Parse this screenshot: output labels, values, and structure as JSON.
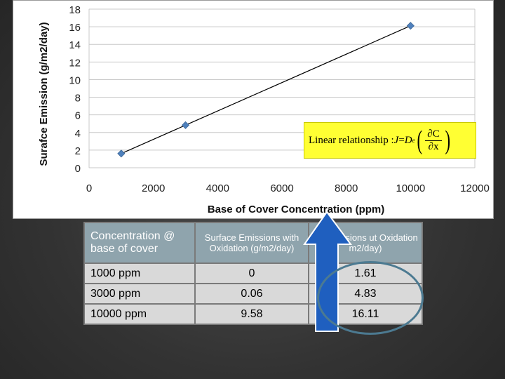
{
  "chart_data": {
    "type": "scatter",
    "title": "",
    "xlabel": "Base of Cover Concentration (ppm)",
    "ylabel": "Surafce Emission (g/m2/day)",
    "xlim": [
      0,
      12000
    ],
    "ylim": [
      0,
      18
    ],
    "x_ticks": [
      0,
      2000,
      4000,
      6000,
      8000,
      10000,
      12000
    ],
    "y_ticks": [
      0,
      2,
      4,
      6,
      8,
      10,
      12,
      14,
      16,
      18
    ],
    "grid": "horizontal",
    "legend": "none",
    "series": [
      {
        "x": [
          1000,
          3000,
          10000
        ],
        "y": [
          1.61,
          4.83,
          16.11
        ],
        "marker": "diamond",
        "marker_color": "#4f81bd",
        "line": "linear-trend",
        "line_color": "#000000"
      }
    ],
    "annotation": "Linear relationship : J = D_e (∂C/∂x)"
  },
  "callout": {
    "label": "Linear relationship : ",
    "lhs": "J",
    "eq": " = ",
    "coef": "D",
    "coef_sub": "e",
    "num": "∂C",
    "den": "∂x",
    "bg_color": "#ffff33"
  },
  "table": {
    "headers": [
      "Concentration @ base of cover",
      "Surface Emissions with Oxidation (g/m2/day)",
      "ce Emissions ut Oxidation m2/day)"
    ],
    "rows": [
      [
        "1000 ppm",
        "0",
        "1.61"
      ],
      [
        "3000 ppm",
        "0.06",
        "4.83"
      ],
      [
        "10000 ppm",
        "9.58",
        "16.11"
      ]
    ],
    "header_color": "#8fa4ad",
    "cell_color": "#d9d9d9"
  },
  "overlay": {
    "arrow_color": "#1f5fbf",
    "circle_color": "#4c7a91"
  }
}
